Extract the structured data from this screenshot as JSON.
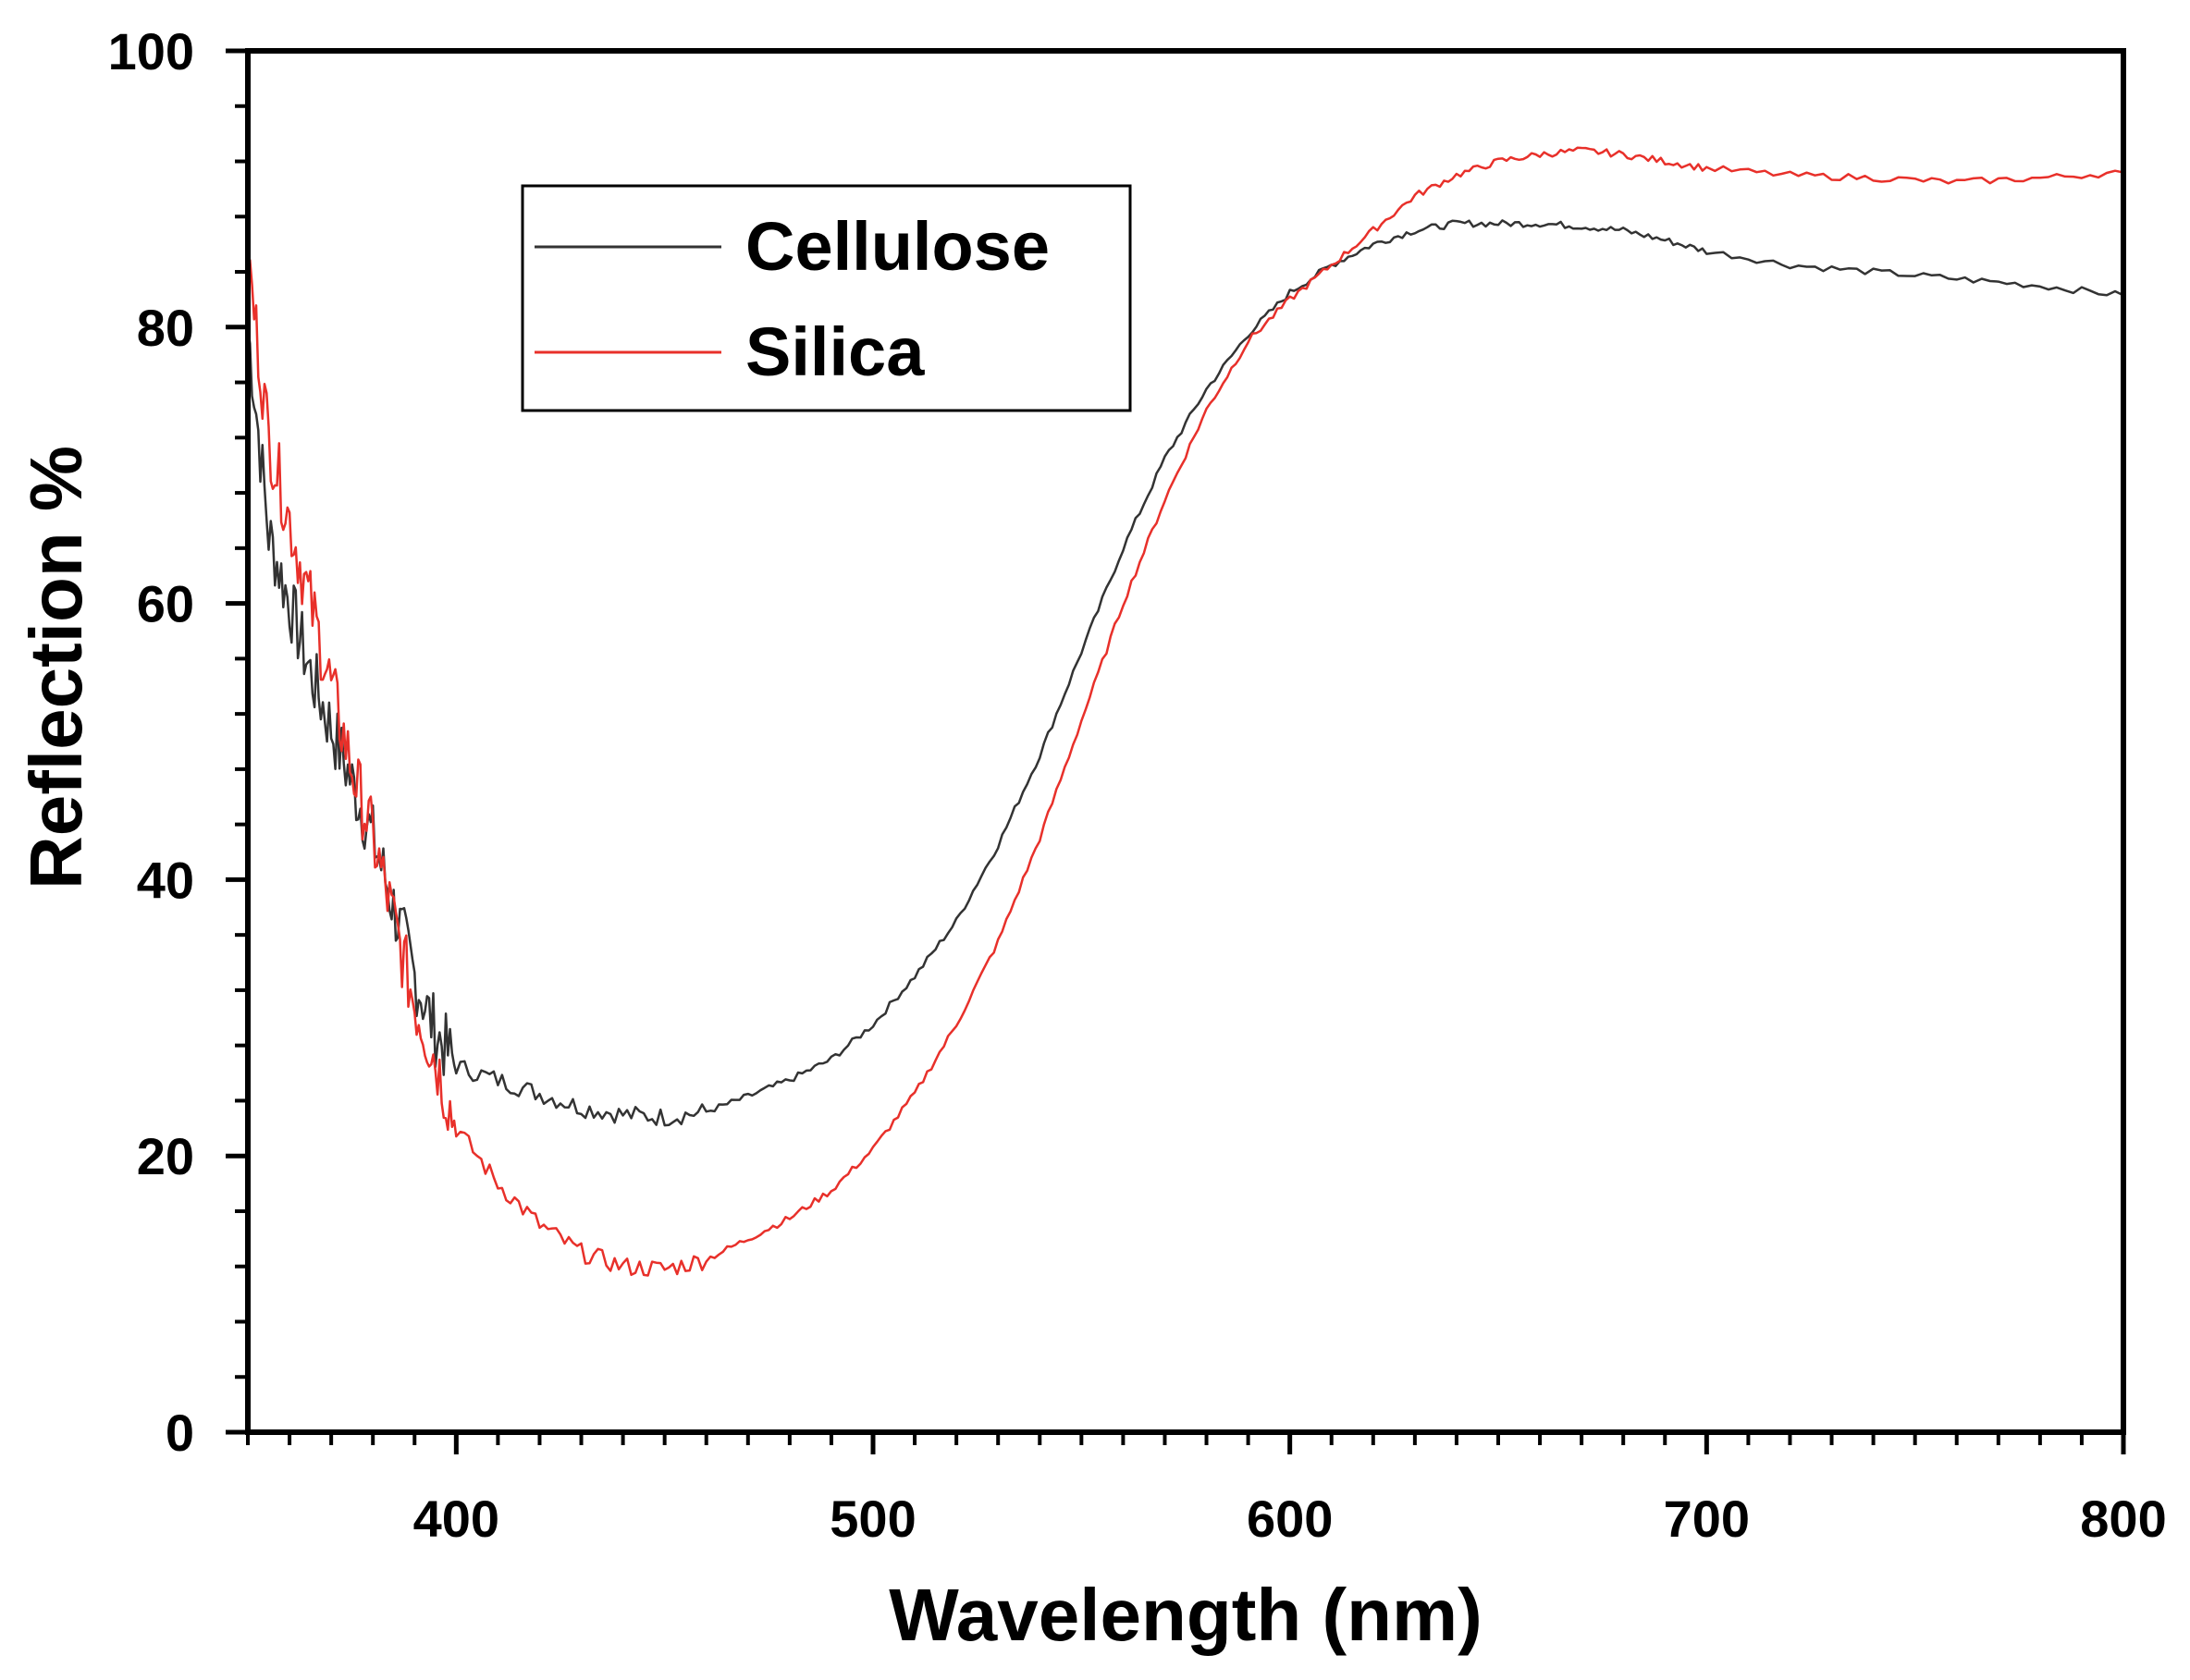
{
  "chart_data": {
    "type": "line",
    "title": "",
    "xlabel": "Wavelength (nm)",
    "ylabel": "Reflection %",
    "xlim": [
      350,
      800
    ],
    "ylim": [
      0,
      100
    ],
    "x_ticks": [
      "400",
      "500",
      "600",
      "700",
      "800"
    ],
    "y_ticks": [
      "0",
      "20",
      "40",
      "60",
      "80",
      "100"
    ],
    "grid": false,
    "legend_position": "top-left",
    "series": [
      {
        "name": "Cellulose",
        "color": "#333333",
        "x": [
          350,
          355,
          360,
          365,
          370,
          375,
          380,
          385,
          390,
          395,
          400,
          410,
          420,
          430,
          440,
          450,
          460,
          470,
          480,
          490,
          500,
          510,
          520,
          530,
          540,
          550,
          560,
          570,
          580,
          590,
          600,
          610,
          620,
          630,
          640,
          650,
          660,
          670,
          680,
          690,
          700,
          720,
          740,
          760,
          780,
          800
        ],
        "y": [
          80,
          65,
          60,
          55,
          51,
          47,
          43,
          38,
          33,
          29,
          26.5,
          25.5,
          24.5,
          23.5,
          23,
          22.8,
          23.2,
          24.3,
          25.5,
          27,
          29.5,
          33,
          37,
          42.5,
          49,
          56.5,
          64,
          70.5,
          75.5,
          79.5,
          82.5,
          84.5,
          86,
          87,
          87.5,
          87.5,
          87.5,
          87.3,
          87,
          86.3,
          85.5,
          84.5,
          84,
          83.5,
          83,
          82.3
        ]
      },
      {
        "name": "Silica",
        "color": "#e8302a",
        "x": [
          350,
          355,
          360,
          365,
          370,
          375,
          380,
          385,
          390,
          395,
          400,
          410,
          420,
          430,
          440,
          450,
          460,
          470,
          480,
          490,
          500,
          510,
          520,
          530,
          540,
          550,
          560,
          570,
          580,
          590,
          600,
          610,
          620,
          630,
          640,
          650,
          660,
          670,
          680,
          690,
          700,
          720,
          740,
          760,
          780,
          800
        ],
        "y": [
          85,
          72,
          66,
          60,
          54,
          48,
          43,
          37,
          31,
          27,
          22,
          18,
          15,
          13,
          12,
          11.8,
          12.5,
          14,
          15.5,
          17.5,
          20.5,
          24.5,
          29.5,
          35.5,
          43,
          51.5,
          60,
          67.5,
          74,
          79,
          82,
          84.5,
          87,
          89.5,
          91,
          92,
          92.5,
          92.8,
          92.5,
          92,
          91.5,
          91,
          90.8,
          90.5,
          90.8,
          91.2
        ]
      }
    ]
  }
}
